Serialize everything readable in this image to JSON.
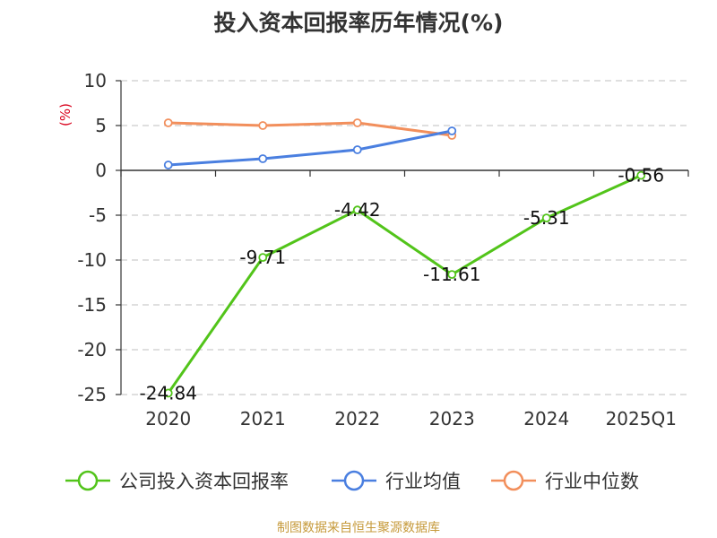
{
  "source_note": "制图数据来自恒生聚源数据库",
  "chart_data": {
    "type": "line",
    "title": "投入资本回报率历年情况(%)",
    "ylabel": "(%)",
    "categories": [
      "2020",
      "2021",
      "2022",
      "2023",
      "2024",
      "2025Q1"
    ],
    "ylim": [
      -25,
      10
    ],
    "yticks": [
      10,
      5,
      0,
      -5,
      -10,
      -15,
      -20,
      -25
    ],
    "grid": true,
    "legend_position": "bottom",
    "series": [
      {
        "name": "公司投入资本回报率",
        "color": "#52c41a",
        "values": [
          -24.84,
          -9.71,
          -4.42,
          -11.61,
          -5.31,
          -0.56
        ],
        "labels": [
          "-24.84",
          "-9.71",
          "-4.42",
          "-11.61",
          "-5.31",
          "-0.56"
        ]
      },
      {
        "name": "行业均值",
        "color": "#4a7fe0",
        "values": [
          0.6,
          1.3,
          2.3,
          4.4,
          null,
          null
        ]
      },
      {
        "name": "行业中位数",
        "color": "#f28f5c",
        "values": [
          5.3,
          5.0,
          5.3,
          3.9,
          null,
          null
        ]
      }
    ]
  }
}
